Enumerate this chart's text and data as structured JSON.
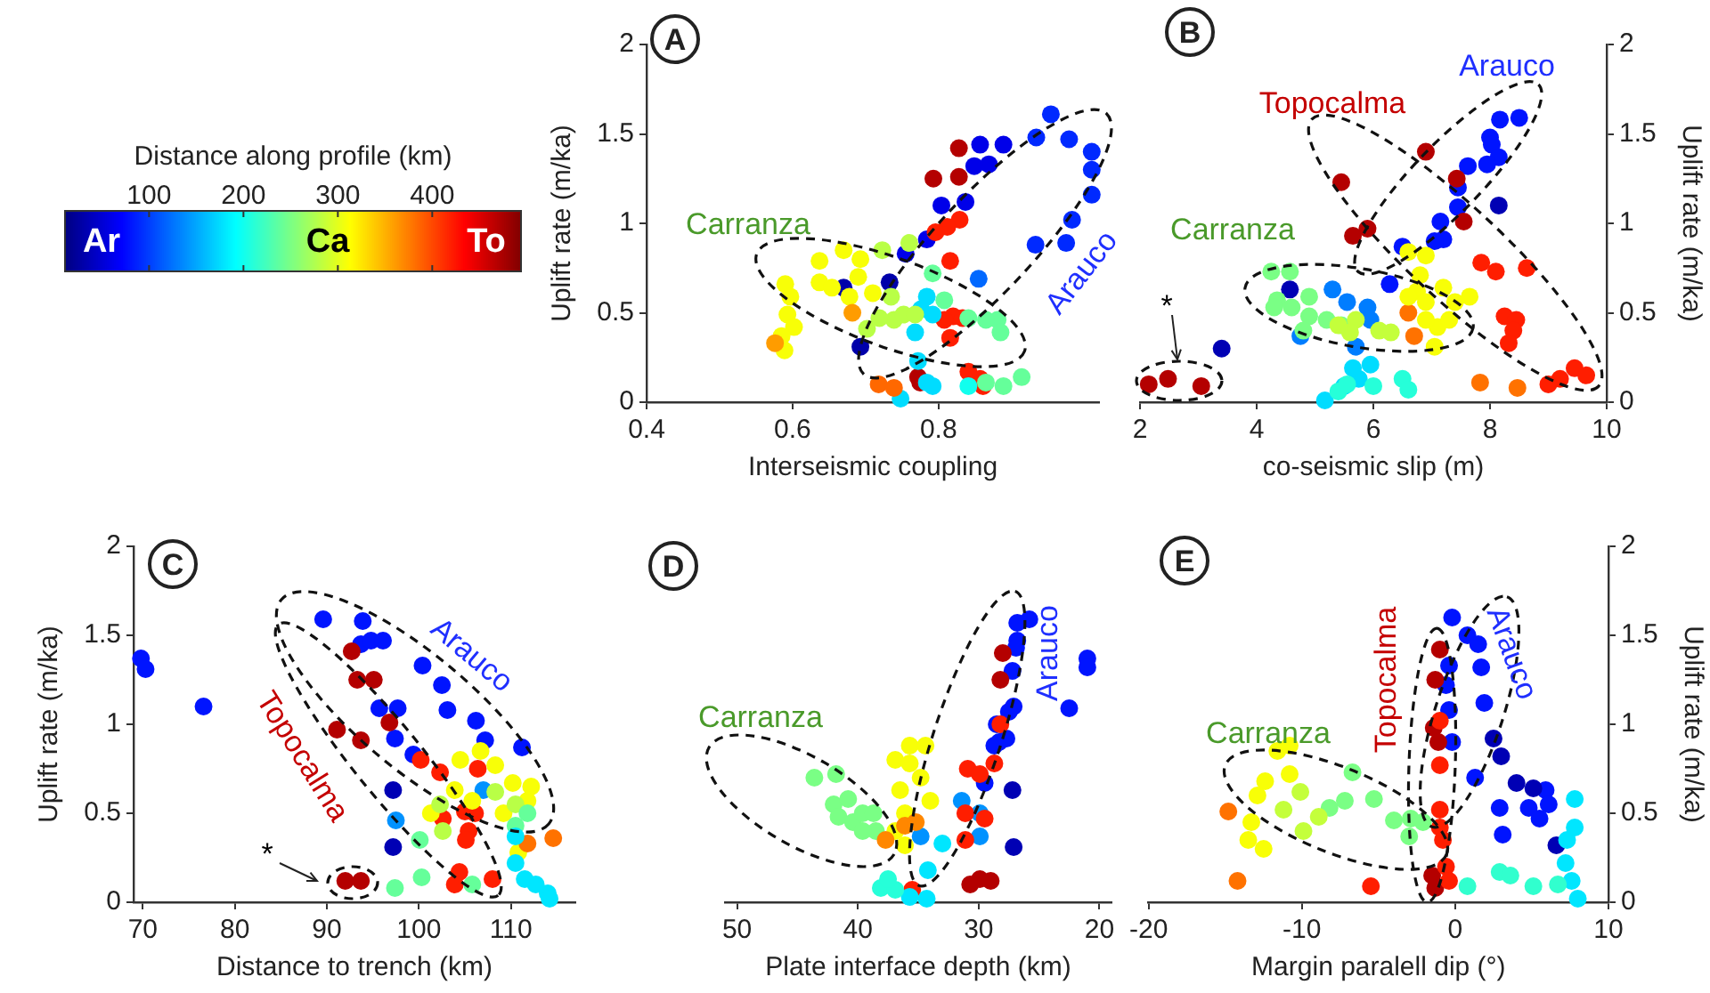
{
  "chart_data": [
    {
      "type": "scatter",
      "xlabel": "Interseismic coupling",
      "ylabel": "Uplift rate (m/ka)",
      "xlim": [
        0.4,
        1.02
      ],
      "xticks": [
        0.4,
        0.6,
        0.8
      ],
      "ylim": [
        0,
        2
      ],
      "yticks": [
        0,
        0.5,
        1,
        1.5,
        2
      ],
      "marker": "circle",
      "clabel": "Distance along profile (km)",
      "clim": [
        10,
        495
      ],
      "cticks": [
        100,
        200,
        300,
        400
      ],
      "annotations": [
        "A",
        "Carranza",
        "Arauco",
        "Ar",
        "Ca",
        "To"
      ],
      "x": [
        0.954,
        0.979,
        1.01,
        1.01,
        1.01,
        0.983,
        0.975,
        0.933,
        0.934,
        0.857,
        0.889,
        0.869,
        0.849,
        0.837,
        0.804,
        0.784,
        0.755,
        0.733,
        0.67,
        0.693,
        0.855,
        0.828,
        0.793,
        0.828,
        0.772,
        0.775,
        0.829,
        0.812,
        0.796,
        0.816,
        0.82,
        0.833,
        0.816,
        0.841,
        0.857,
        0.861,
        0.808,
        0.784,
        0.776,
        0.792,
        0.768,
        0.772,
        0.784,
        0.748,
        0.792,
        0.841,
        0.889,
        0.914,
        0.865,
        0.881,
        0.885,
        0.865,
        0.841,
        0.808,
        0.792,
        0.735,
        0.739,
        0.752,
        0.702,
        0.719,
        0.768,
        0.723,
        0.76,
        0.637,
        0.67,
        0.693,
        0.69,
        0.637,
        0.654,
        0.71,
        0.678,
        0.59,
        0.597,
        0.593,
        0.602,
        0.585,
        0.589,
        0.576,
        0.682,
        0.718,
        0.739
      ],
      "values": [
        1.61,
        1.47,
        1.4,
        1.3,
        1.16,
        1.02,
        0.89,
        0.88,
        1.48,
        1.44,
        1.44,
        1.33,
        1.32,
        1.12,
        1.1,
        0.91,
        0.83,
        0.67,
        0.64,
        0.31,
        0.69,
        1.42,
        1.25,
        1.26,
        0.14,
        0.11,
        1.02,
        0.98,
        0.95,
        0.79,
        0.48,
        0.47,
        0.36,
        0.17,
        0.13,
        0.09,
        0.46,
        0.59,
        0.52,
        0.49,
        0.39,
        0.23,
        0.11,
        0.02,
        0.09,
        0.09,
        0.09,
        0.14,
        0.11,
        0.46,
        0.39,
        0.46,
        0.47,
        0.57,
        0.72,
        0.59,
        0.46,
        0.49,
        0.41,
        0.47,
        0.49,
        0.85,
        0.89,
        0.79,
        0.85,
        0.8,
        0.7,
        0.67,
        0.64,
        0.61,
        0.59,
        0.66,
        0.59,
        0.49,
        0.42,
        0.37,
        0.29,
        0.33,
        0.5,
        0.1,
        0.08
      ],
      "cvalues": [
        90,
        90,
        90,
        90,
        90,
        90,
        90,
        90,
        90,
        60,
        60,
        60,
        60,
        60,
        60,
        60,
        60,
        30,
        30,
        30,
        120,
        470,
        470,
        470,
        470,
        470,
        420,
        420,
        420,
        420,
        420,
        420,
        420,
        420,
        420,
        420,
        420,
        175,
        175,
        175,
        175,
        175,
        175,
        175,
        175,
        200,
        240,
        240,
        240,
        240,
        240,
        240,
        240,
        240,
        240,
        280,
        280,
        280,
        280,
        280,
        280,
        280,
        280,
        310,
        310,
        310,
        310,
        310,
        310,
        310,
        310,
        310,
        310,
        310,
        310,
        310,
        310,
        360,
        360,
        385,
        385
      ]
    },
    {
      "type": "scatter",
      "xlabel": "co-seismic slip (m)",
      "ylabel": "Uplift rate (m/ka)",
      "xlim": [
        2,
        10
      ],
      "xticks": [
        2,
        4,
        6,
        8,
        10
      ],
      "ylim": [
        0,
        2
      ],
      "yticks": [
        0,
        0.5,
        1,
        1.5,
        2
      ],
      "marker": "circle",
      "annotations": [
        "B",
        "Topocalma",
        "Arauco",
        "Carranza",
        "*"
      ],
      "x": [
        8.5,
        8.17,
        8.0,
        8.03,
        8.15,
        7.95,
        7.62,
        7.45,
        7.45,
        7.15,
        7.2,
        7.05,
        6.5,
        6.28,
        8.15,
        3.4,
        4.57,
        6.9,
        5.45,
        5.65,
        5.9,
        7.43,
        7.55,
        2.15,
        2.48,
        3.05,
        7.85,
        8.1,
        8.63,
        8.25,
        8.45,
        8.4,
        8.32,
        9.2,
        9.45,
        9.65,
        9.0,
        7.83,
        8.47,
        6.6,
        6.7,
        6.6,
        6.9,
        6.8,
        6.75,
        6.9,
        7.2,
        7.4,
        7.65,
        7.1,
        6.9,
        7.3,
        7.05,
        6.6,
        5.3,
        5.55,
        5.9,
        4.75,
        5.7,
        5.95,
        5.95,
        5.75,
        5.5,
        5.17,
        5.65,
        5.4,
        6.5,
        6.6,
        6.0,
        5.55,
        4.25,
        4.57,
        4.35,
        4.6,
        4.9,
        5.2,
        5.45,
        4.9,
        4.3,
        4.8,
        5.7,
        5.6,
        6.1,
        6.3,
        5.4
      ],
      "values": [
        1.59,
        1.58,
        1.48,
        1.44,
        1.37,
        1.33,
        1.32,
        1.2,
        1.09,
        1.01,
        0.91,
        0.9,
        0.87,
        0.66,
        1.1,
        0.3,
        0.63,
        1.4,
        1.23,
        0.93,
        0.97,
        1.25,
        1.01,
        0.1,
        0.13,
        0.09,
        0.78,
        0.73,
        0.75,
        0.48,
        0.46,
        0.4,
        0.33,
        0.13,
        0.19,
        0.15,
        0.1,
        0.11,
        0.08,
        0.5,
        0.37,
        0.84,
        0.82,
        0.71,
        0.62,
        0.56,
        0.64,
        0.56,
        0.59,
        0.42,
        0.46,
        0.46,
        0.31,
        0.59,
        0.63,
        0.56,
        0.53,
        0.37,
        0.31,
        0.46,
        0.21,
        0.13,
        0.09,
        0.01,
        0.19,
        0.06,
        0.13,
        0.07,
        0.09,
        0.1,
        0.73,
        0.73,
        0.57,
        0.53,
        0.48,
        0.46,
        0.43,
        0.59,
        0.53,
        0.4,
        0.46,
        0.39,
        0.4,
        0.39,
        0.43
      ],
      "colors": [
        "#0014ff",
        "#0014ff",
        "#0014ff",
        "#0014ff",
        "#0014ff",
        "#0014ff",
        "#0014ff",
        "#0014ff",
        "#0014ff",
        "#0014ff",
        "#0014ff",
        "#0014ff",
        "#0014ff",
        "#0014ff",
        "#0000b4",
        "#0000b4",
        "#0000b4",
        "#b40000",
        "#b40000",
        "#b40000",
        "#b40000",
        "#b40000",
        "#b40000",
        "#b40000",
        "#b40000",
        "#b40000",
        "#ff1e00",
        "#ff1e00",
        "#ff1e00",
        "#ff1e00",
        "#ff1e00",
        "#ff1e00",
        "#ff1e00",
        "#ff1e00",
        "#ff1e00",
        "#ff1e00",
        "#ff1e00",
        "#ff7200",
        "#ff7200",
        "#ff7200",
        "#ff7200",
        "#f8ff07",
        "#f8ff07",
        "#f8ff07",
        "#f8ff07",
        "#f8ff07",
        "#f8ff07",
        "#f8ff07",
        "#f8ff07",
        "#f8ff07",
        "#f8ff07",
        "#f8ff07",
        "#f8ff07",
        "#f8ff07",
        "#007dff",
        "#007dff",
        "#007dff",
        "#007dff",
        "#007dff",
        "#007dff",
        "#00dcff",
        "#00dcff",
        "#00dcff",
        "#00dcff",
        "#00dcff",
        "#26ffd9",
        "#26ffd9",
        "#26ffd9",
        "#26ffd9",
        "#26ffd9",
        "#7aff85",
        "#7aff85",
        "#7aff85",
        "#7aff85",
        "#7aff85",
        "#7aff85",
        "#7aff85",
        "#7aff85",
        "#7aff85",
        "#7aff85",
        "#c4ff3b",
        "#c4ff3b",
        "#c4ff3b",
        "#c4ff3b",
        "#c4ff3b"
      ]
    },
    {
      "type": "scatter",
      "xlabel": "Distance to trench (km)",
      "ylabel": "Uplift rate (m/ka)",
      "xlim": [
        69,
        117
      ],
      "xticks": [
        70,
        80,
        90,
        100,
        110
      ],
      "ylim": [
        0,
        2
      ],
      "yticks": [
        0,
        0.5,
        1,
        1.5,
        2
      ],
      "marker": "circle",
      "annotations": [
        "C",
        "Arauco",
        "Topocalma",
        "*"
      ],
      "x": [
        69.8,
        70.3,
        76.6,
        89.6,
        93.9,
        93.7,
        94.8,
        96.1,
        95.7,
        97.7,
        100.4,
        102.5,
        103.1,
        106.2,
        97.4,
        107.2,
        111.2,
        99.4,
        97.2,
        97.2,
        97.5,
        107,
        92.7,
        93.3,
        95.1,
        91.1,
        93.7,
        96.8,
        92.0,
        93.7,
        100.2,
        102.3,
        102.6,
        105,
        106.1,
        105.4,
        105.1,
        104.4,
        103.9,
        108,
        106.4,
        104.5,
        106.7,
        108.3,
        110.2,
        111.8,
        112.2,
        103.9,
        105.8,
        109.2,
        101.3,
        110.8,
        114.6,
        111.8,
        102.3,
        108.3,
        110.5,
        102.6,
        100.1,
        97.4,
        100.3,
        105.8,
        110.5,
        111.8,
        110.5,
        111.5,
        112.7,
        114,
        114.2,
        110.5
      ],
      "values": [
        1.37,
        1.31,
        1.1,
        1.59,
        1.58,
        1.45,
        1.47,
        1.47,
        1.09,
        1.09,
        1.33,
        1.22,
        1.08,
        1.02,
        0.92,
        0.91,
        0.87,
        0.83,
        0.63,
        0.31,
        0.46,
        0.63,
        1.41,
        1.25,
        1.25,
        0.97,
        0.91,
        1.01,
        0.12,
        0.12,
        0.8,
        0.73,
        0.47,
        0.51,
        0.5,
        0.4,
        0.35,
        0.17,
        0.1,
        0.13,
        0.75,
        0.8,
        0.85,
        0.77,
        0.67,
        0.57,
        0.65,
        0.63,
        0.57,
        0.5,
        0.5,
        0.28,
        0.36,
        0.33,
        0.55,
        0.62,
        0.55,
        0.4,
        0.35,
        0.08,
        0.14,
        0.1,
        0.43,
        0.5,
        0.22,
        0.13,
        0.1,
        0.05,
        0.02,
        0.37
      ],
      "colors": [
        "#0014ff",
        "#0014ff",
        "#0014ff",
        "#0014ff",
        "#0014ff",
        "#0014ff",
        "#0014ff",
        "#0014ff",
        "#0014ff",
        "#0014ff",
        "#0014ff",
        "#0014ff",
        "#0014ff",
        "#0014ff",
        "#0014ff",
        "#0014ff",
        "#0014ff",
        "#0014ff",
        "#0000b4",
        "#0000b4",
        "#0092ff",
        "#0092ff",
        "#b40000",
        "#b40000",
        "#b40000",
        "#b40000",
        "#b40000",
        "#b40000",
        "#b40000",
        "#b40000",
        "#ff1e00",
        "#ff1e00",
        "#ff1e00",
        "#ff1e00",
        "#ff1e00",
        "#ff1e00",
        "#ff1e00",
        "#ff1e00",
        "#ff1e00",
        "#ff1e00",
        "#ff1e00",
        "#f8ff07",
        "#f8ff07",
        "#f8ff07",
        "#f8ff07",
        "#f8ff07",
        "#f8ff07",
        "#f8ff07",
        "#f8ff07",
        "#f8ff07",
        "#f8ff07",
        "#f8ff07",
        "#ff7200",
        "#ff7200",
        "#b9ff46",
        "#b9ff46",
        "#b9ff46",
        "#b9ff46",
        "#65ff9a",
        "#65ff9a",
        "#65ff9a",
        "#65ff9a",
        "#65ff9a",
        "#65ff9a",
        "#00e6ff",
        "#00e6ff",
        "#00e6ff",
        "#00e6ff",
        "#00e6ff",
        "#00e6ff"
      ]
    },
    {
      "type": "scatter",
      "xlabel": "Plate interface depth (km)",
      "xlim": [
        51,
        19
      ],
      "xticks": [
        50,
        40,
        30,
        20
      ],
      "ylim": [
        0,
        2
      ],
      "yticks": [
        0,
        0.5,
        1,
        1.5,
        2
      ],
      "tick_labels": "x",
      "marker": "circle",
      "annotations": [
        "D",
        "Carranza",
        "Arauco"
      ],
      "x": [
        25.8,
        26.8,
        26.8,
        26.9,
        21.0,
        21.0,
        22.5,
        27.2,
        27.1,
        27.5,
        28.5,
        28.3,
        28.7,
        27.7,
        29.5,
        27.2,
        27.1,
        31.4,
        29.9,
        29.9,
        34.8,
        28.0,
        28.2,
        29.9,
        29.0,
        30.7,
        28.2,
        28.7,
        30.9,
        29.9,
        31.1,
        31.1,
        29.5,
        35.5,
        33.0,
        34.2,
        34.3,
        35.7,
        38.1,
        36.9,
        37.5,
        43.6,
        41.8,
        42.0,
        40.8,
        41.6,
        40.4,
        39.6,
        38.7,
        38.5,
        39.6,
        35.7,
        34.4,
        36.9,
        35.7,
        36.5,
        34.8,
        36.1,
        34.0,
        36.1,
        36.9,
        37.7,
        36.1,
        35.2
      ],
      "values": [
        1.59,
        1.57,
        1.47,
        1.43,
        1.37,
        1.32,
        1.09,
        1.3,
        1.1,
        1.07,
        1.0,
        0.9,
        0.88,
        0.92,
        0.67,
        0.63,
        0.31,
        0.57,
        0.5,
        0.37,
        0.37,
        1.4,
        1.25,
        0.13,
        0.12,
        0.1,
        1.0,
        0.78,
        0.75,
        0.72,
        0.5,
        0.35,
        0.47,
        0.07,
        0.33,
        0.18,
        0.02,
        0.03,
        0.08,
        0.07,
        0.13,
        0.7,
        0.72,
        0.55,
        0.58,
        0.48,
        0.45,
        0.5,
        0.5,
        0.4,
        0.4,
        0.88,
        0.88,
        0.8,
        0.78,
        0.63,
        0.7,
        0.5,
        0.57,
        0.32,
        0.4,
        0.35,
        0.43,
        0.45
      ],
      "colors": [
        "#0014ff",
        "#0014ff",
        "#0014ff",
        "#0014ff",
        "#0014ff",
        "#0014ff",
        "#0014ff",
        "#0014ff",
        "#0014ff",
        "#0014ff",
        "#0014ff",
        "#0014ff",
        "#0014ff",
        "#0014ff",
        "#0014ff",
        "#0000b4",
        "#0000b4",
        "#0092ff",
        "#0092ff",
        "#0092ff",
        "#0092ff",
        "#b40000",
        "#b40000",
        "#b40000",
        "#b40000",
        "#b40000",
        "#ff1e00",
        "#ff1e00",
        "#ff1e00",
        "#ff1e00",
        "#ff1e00",
        "#ff1e00",
        "#ff1e00",
        "#ff1e00",
        "#00e6ff",
        "#00e6ff",
        "#00e6ff",
        "#00e6ff",
        "#26ffd9",
        "#26ffd9",
        "#26ffd9",
        "#7aff85",
        "#7aff85",
        "#7aff85",
        "#7aff85",
        "#7aff85",
        "#7aff85",
        "#7aff85",
        "#7aff85",
        "#7aff85",
        "#7aff85",
        "#f8ff07",
        "#f8ff07",
        "#f8ff07",
        "#f8ff07",
        "#f8ff07",
        "#f8ff07",
        "#f8ff07",
        "#f8ff07",
        "#f8ff07",
        "#f8ff07",
        "#ff8700",
        "#ff8700",
        "#ff8700"
      ]
    },
    {
      "type": "scatter",
      "xlabel": "Margin paralell dip (°)",
      "ylabel": "Uplift rate (m/ka)",
      "xlim": [
        -20,
        10
      ],
      "xticks": [
        -20,
        -10,
        0,
        10
      ],
      "ylim": [
        0,
        2
      ],
      "yticks": [
        0,
        0.5,
        1,
        1.5,
        2
      ],
      "marker": "circle",
      "annotations": [
        "E",
        "Carranza",
        "Topocalma",
        "Arauco"
      ],
      "x": [
        -0.2,
        0.8,
        1.5,
        1.7,
        -0.4,
        -0.6,
        1.9,
        -0.4,
        -0.2,
        1.3,
        2.9,
        3.1,
        4.8,
        5.9,
        6.1,
        5.5,
        2.5,
        3.0,
        4.0,
        5.1,
        6.6,
        -1.0,
        -1.3,
        -1.4,
        -1.1,
        -1.5,
        -1.3,
        -1.0,
        -1.0,
        -1.0,
        -1.0,
        -0.8,
        -0.6,
        -0.4,
        -5.5,
        -14.8,
        -14.2,
        7.8,
        7.8,
        7.3,
        7.2,
        7.6,
        8.0,
        2.9,
        3.6,
        5.1,
        6.7,
        0.8,
        -6.7,
        -5.3,
        -4.0,
        -2.9,
        -2.1,
        -3.0,
        -8.2,
        -7.2,
        -10.1,
        -8.9,
        -9.9,
        -11.2,
        -10.8,
        -11.6,
        -10.8,
        -12.4,
        -12.9,
        -13.3,
        -13.5,
        -12.5
      ],
      "values": [
        1.6,
        1.5,
        1.45,
        1.32,
        1.33,
        1.22,
        1.12,
        1.08,
        0.9,
        0.7,
        0.53,
        0.38,
        0.53,
        0.63,
        0.55,
        0.47,
        0.92,
        0.82,
        0.67,
        0.64,
        0.32,
        1.42,
        1.25,
        0.98,
        0.9,
        0.15,
        0.08,
        1.02,
        0.77,
        0.52,
        0.42,
        0.35,
        0.2,
        0.12,
        0.09,
        0.51,
        0.12,
        0.58,
        0.42,
        0.35,
        0.22,
        0.12,
        0.02,
        0.17,
        0.15,
        0.09,
        0.1,
        0.09,
        0.73,
        0.58,
        0.46,
        0.47,
        0.45,
        0.37,
        0.53,
        0.57,
        0.62,
        0.48,
        0.4,
        0.52,
        0.88,
        0.85,
        0.72,
        0.68,
        0.6,
        0.45,
        0.35,
        0.3
      ],
      "colors": [
        "#0014ff",
        "#0014ff",
        "#0014ff",
        "#0014ff",
        "#0014ff",
        "#0014ff",
        "#0014ff",
        "#0014ff",
        "#0014ff",
        "#0014ff",
        "#0014ff",
        "#0014ff",
        "#0014ff",
        "#0014ff",
        "#0014ff",
        "#0014ff",
        "#0000b4",
        "#0000b4",
        "#0000b4",
        "#0000b4",
        "#0000b4",
        "#b40000",
        "#b40000",
        "#b40000",
        "#b40000",
        "#b40000",
        "#b40000",
        "#ff1e00",
        "#ff1e00",
        "#ff1e00",
        "#ff1e00",
        "#ff1e00",
        "#ff1e00",
        "#ff1e00",
        "#ff1e00",
        "#ff7200",
        "#ff7200",
        "#00e6ff",
        "#00e6ff",
        "#00e6ff",
        "#00e6ff",
        "#00e6ff",
        "#00e6ff",
        "#31ffce",
        "#31ffce",
        "#31ffce",
        "#31ffce",
        "#31ffce",
        "#7aff85",
        "#7aff85",
        "#7aff85",
        "#7aff85",
        "#7aff85",
        "#7aff85",
        "#7aff85",
        "#7aff85",
        "#c4ff3b",
        "#c4ff3b",
        "#c4ff3b",
        "#c4ff3b",
        "#f8ff07",
        "#f8ff07",
        "#f8ff07",
        "#f8ff07",
        "#f8ff07",
        "#f8ff07",
        "#f8ff07",
        "#f8ff07"
      ]
    }
  ]
}
